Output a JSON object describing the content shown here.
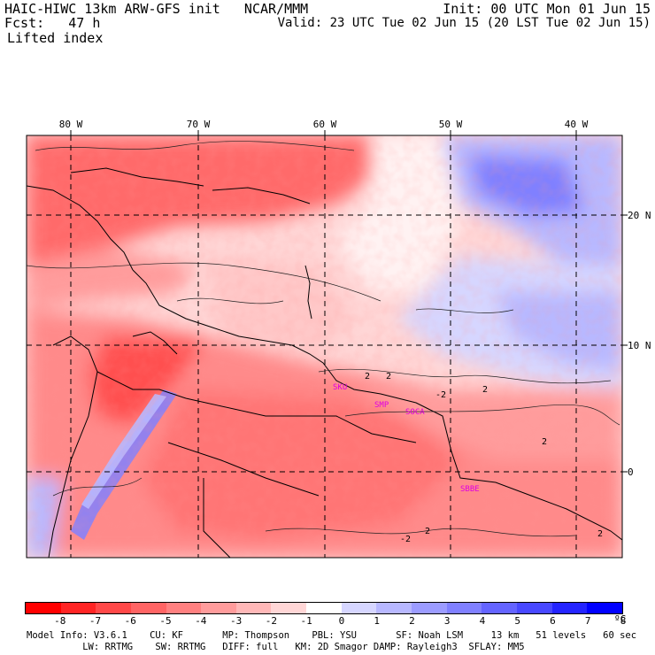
{
  "header": {
    "model_line": "HAIC-HIWC 13km ARW-GFS init   NCAR/MMM",
    "fcst_line": "Fcst:   47 h",
    "field": "Lifted index",
    "init_line": "Init: 00 UTC Mon 01 Jun 15",
    "valid_line": "Valid: 23 UTC Tue 02 Jun 15 (20 LST Tue 02 Jun 15)"
  },
  "map": {
    "lon_labels": [
      "80 W",
      "70 W",
      "60 W",
      "50 W",
      "40 W"
    ],
    "lat_labels": [
      "20 N",
      "10 N",
      "0"
    ],
    "stations": [
      "SKU",
      "SMP",
      "SOCA",
      "SBBE"
    ],
    "contour_labels": [
      "2",
      "2",
      "-2",
      "2",
      "2",
      "-2",
      "2",
      "2"
    ]
  },
  "colorbar": {
    "labels": [
      "-8",
      "-7",
      "-6",
      "-5",
      "-4",
      "-3",
      "-2",
      "-1",
      "0",
      "1",
      "2",
      "3",
      "4",
      "5",
      "6",
      "7",
      "8"
    ],
    "unit": "ºC",
    "colors": [
      "#ff0000",
      "#ff2424",
      "#ff4848",
      "#ff6464",
      "#ff8080",
      "#ff9c9c",
      "#ffb8b8",
      "#ffd6d6",
      "#ffffff",
      "#d6d6ff",
      "#b8b8ff",
      "#9c9cff",
      "#8080ff",
      "#6464ff",
      "#4848ff",
      "#2424ff",
      "#0000ff"
    ]
  },
  "footer": {
    "line1": "Model Info: V3.6.1    CU: KF       MP: Thompson    PBL: YSU       SF: Noah LSM     13 km   51 levels   60 sec",
    "line2": "          LW: RRTMG    SW: RRTMG   DIFF: full   KM: 2D Smagor DAMP: Rayleigh3  SFLAY: MM5"
  }
}
